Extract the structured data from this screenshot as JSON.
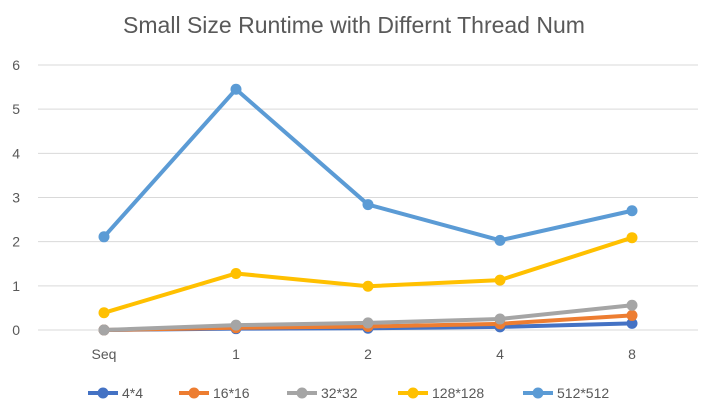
{
  "chart_data": {
    "type": "line",
    "title": "Small Size Runtime with Differnt Thread Num",
    "xlabel": "",
    "ylabel": "",
    "categories": [
      "Seq",
      "1",
      "2",
      "4",
      "8"
    ],
    "ylim": [
      0,
      6
    ],
    "yticks": [
      "0",
      "1",
      "2",
      "3",
      "4",
      "5",
      "6"
    ],
    "grid": true,
    "legend": "bottom",
    "series": [
      {
        "name": "4*4",
        "color": "#4472C4",
        "values": [
          0.0,
          0.03,
          0.04,
          0.07,
          0.15
        ]
      },
      {
        "name": "16*16",
        "color": "#ED7D31",
        "values": [
          0.0,
          0.05,
          0.08,
          0.14,
          0.33
        ]
      },
      {
        "name": "32*32",
        "color": "#A5A5A5",
        "values": [
          0.0,
          0.11,
          0.16,
          0.25,
          0.56
        ]
      },
      {
        "name": "128*128",
        "color": "#FFC000",
        "values": [
          0.39,
          1.28,
          0.99,
          1.13,
          2.09
        ]
      },
      {
        "name": "512*512",
        "color": "#5B9BD5",
        "values": [
          2.11,
          5.45,
          2.84,
          2.03,
          2.7
        ]
      }
    ]
  }
}
